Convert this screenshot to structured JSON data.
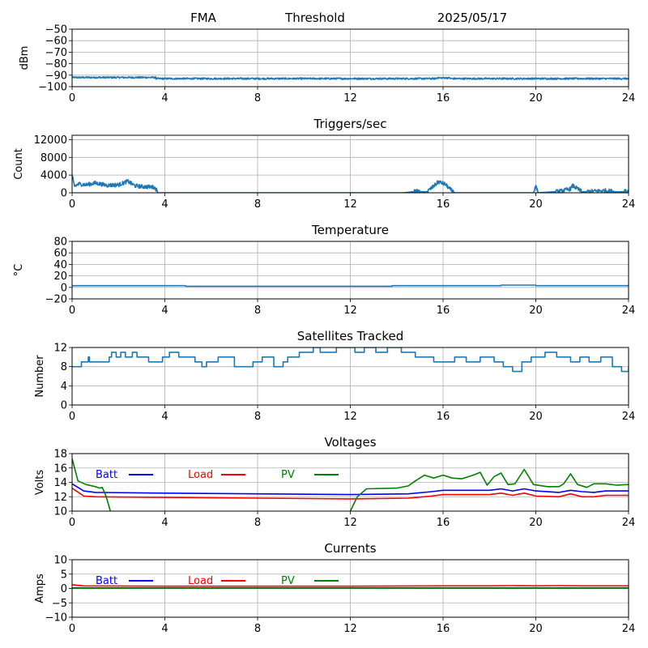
{
  "header": {
    "station": "FMA",
    "mode": "Threshold",
    "date": "2025/05/17"
  },
  "chart_data": [
    {
      "type": "line",
      "title": "",
      "ylabel": "dBm",
      "xlim": [
        0,
        24
      ],
      "ylim": [
        -100,
        -50
      ],
      "xticks": [
        0,
        4,
        8,
        12,
        16,
        20,
        24
      ],
      "yticks": [
        -100,
        -90,
        -80,
        -70,
        -60,
        -50
      ],
      "grid": true,
      "series": [
        {
          "color": "#1f77b4",
          "noise": 0.7,
          "x": [
            0,
            3.6,
            3.6,
            15.7,
            15.7,
            16.3,
            16.3,
            24
          ],
          "y": [
            -92,
            -92,
            -93,
            -93,
            -92.4,
            -92.4,
            -93,
            -93
          ]
        }
      ]
    },
    {
      "type": "line",
      "title": "Triggers/sec",
      "ylabel": "Count",
      "xlim": [
        0,
        24
      ],
      "ylim": [
        0,
        13000
      ],
      "xticks": [
        0,
        4,
        8,
        12,
        16,
        20,
        24
      ],
      "yticks": [
        0,
        4000,
        8000,
        12000
      ],
      "grid": true,
      "series": [
        {
          "color": "#1f77b4",
          "noise": 450,
          "x": [
            0,
            0.1,
            0.3,
            0.6,
            1,
            1.5,
            2,
            2.4,
            2.7,
            3,
            3.5,
            3.6,
            3.7,
            14.3,
            14.8,
            15.3,
            15.6,
            15.8,
            16.1,
            16.3,
            16.5,
            19.9,
            20,
            20.1,
            21,
            21.5,
            21.6,
            22,
            23,
            23.5,
            24
          ],
          "y": [
            3800,
            1500,
            2000,
            1800,
            2200,
            1700,
            1800,
            2600,
            1600,
            1400,
            1300,
            1000,
            0,
            0,
            300,
            200,
            1500,
            2500,
            1900,
            800,
            0,
            0,
            1500,
            0,
            300,
            900,
            1600,
            200,
            500,
            200,
            300
          ]
        }
      ]
    },
    {
      "type": "line",
      "title": "Temperature",
      "ylabel": "°C",
      "xlim": [
        0,
        24
      ],
      "ylim": [
        -20,
        80
      ],
      "xticks": [
        0,
        4,
        8,
        12,
        16,
        20,
        24
      ],
      "yticks": [
        -20,
        0,
        20,
        40,
        60,
        80
      ],
      "grid": true,
      "series": [
        {
          "color": "#1f77b4",
          "noise": 0,
          "x": [
            0,
            4.9,
            4.9,
            13.8,
            13.8,
            18.5,
            18.5,
            20,
            20,
            24
          ],
          "y": [
            3,
            3,
            2,
            2,
            3,
            3,
            4,
            4,
            3,
            3
          ]
        }
      ]
    },
    {
      "type": "line",
      "title": "Satellites Tracked",
      "ylabel": "Number",
      "xlim": [
        0,
        24
      ],
      "ylim": [
        0,
        12
      ],
      "xticks": [
        0,
        4,
        8,
        12,
        16,
        20,
        24
      ],
      "yticks": [
        0,
        4,
        8,
        12
      ],
      "grid": true,
      "series": [
        {
          "color": "#1f77b4",
          "noise": 0,
          "step": true,
          "x": [
            0,
            0.4,
            0.7,
            0.75,
            1.6,
            1.7,
            1.9,
            2.1,
            2.3,
            2.6,
            2.8,
            3.3,
            3.9,
            4.2,
            4.6,
            5.3,
            5.6,
            5.8,
            6.3,
            7,
            7.8,
            8.2,
            8.7,
            9.1,
            9.3,
            9.8,
            10.4,
            10.7,
            11.4,
            12.2,
            12.6,
            13.1,
            13.6,
            14.2,
            14.8,
            15.6,
            16.5,
            17,
            17.6,
            18.2,
            18.6,
            19,
            19.4,
            19.8,
            20.4,
            20.9,
            21.5,
            21.9,
            22.3,
            22.8,
            23.3,
            23.7,
            24
          ],
          "y": [
            8,
            9,
            10,
            9,
            10,
            11,
            10,
            11,
            10,
            11,
            10,
            9,
            10,
            11,
            10,
            9,
            8,
            9,
            10,
            8,
            9,
            10,
            8,
            9,
            10,
            11,
            12,
            11,
            12,
            11,
            12,
            11,
            12,
            11,
            10,
            9,
            10,
            9,
            10,
            9,
            8,
            7,
            9,
            10,
            11,
            10,
            9,
            10,
            9,
            10,
            8,
            7,
            8
          ]
        }
      ]
    },
    {
      "type": "line",
      "title": "Voltages",
      "ylabel": "Volts",
      "xlim": [
        0,
        24
      ],
      "ylim": [
        10,
        18
      ],
      "xticks": [
        0,
        4,
        8,
        12,
        16,
        20,
        24
      ],
      "yticks": [
        10,
        12,
        14,
        16,
        18
      ],
      "grid": true,
      "legend": [
        "Batt",
        "Load",
        "PV"
      ],
      "series": [
        {
          "name": "Batt",
          "color": "#0000ff",
          "noise": 0,
          "x": [
            0,
            0.5,
            1,
            4,
            8,
            12,
            14.5,
            15.5,
            16,
            17,
            18,
            18.5,
            19,
            19.5,
            20,
            21,
            21.5,
            22,
            22.5,
            23,
            24
          ],
          "y": [
            13.8,
            12.8,
            12.6,
            12.5,
            12.4,
            12.3,
            12.4,
            12.7,
            12.9,
            12.9,
            12.9,
            13.1,
            12.8,
            13.1,
            12.8,
            12.6,
            12.9,
            12.7,
            12.6,
            12.8,
            12.8
          ]
        },
        {
          "name": "Load",
          "color": "#ff0000",
          "noise": 0,
          "x": [
            0,
            0.5,
            1,
            4,
            8,
            12,
            14.5,
            15.5,
            16,
            17,
            18,
            18.5,
            19,
            19.5,
            20,
            21,
            21.5,
            22,
            22.5,
            23,
            24
          ],
          "y": [
            13.2,
            12.1,
            12,
            11.9,
            11.8,
            11.7,
            11.8,
            12.1,
            12.3,
            12.3,
            12.3,
            12.5,
            12.2,
            12.5,
            12.1,
            12,
            12.4,
            12,
            12,
            12.2,
            12.2
          ]
        },
        {
          "name": "PV",
          "color": "#008000",
          "noise": 0,
          "x": [
            0,
            0.25,
            0.6,
            1,
            1.2,
            1.3,
            1.45,
            1.6,
            1.65
          ],
          "y": [
            17.3,
            14.2,
            13.7,
            13.4,
            13.2,
            13.3,
            12.2,
            10.6,
            10
          ],
          "x2": [
            12,
            12.3,
            12.7,
            14,
            14.5,
            14.8,
            15.2,
            15.6,
            16,
            16.4,
            16.8,
            17.3,
            17.6,
            17.9,
            18.2,
            18.5,
            18.8,
            19.1,
            19.5,
            19.9,
            20.5,
            21,
            21.2,
            21.5,
            21.8,
            22.2,
            22.5,
            23,
            23.5,
            24
          ],
          "y2": [
            10,
            12,
            13.1,
            13.2,
            13.5,
            14.2,
            15,
            14.6,
            15,
            14.6,
            14.5,
            15,
            15.4,
            13.6,
            14.8,
            15.3,
            13.7,
            13.8,
            15.8,
            13.7,
            13.4,
            13.4,
            13.8,
            15.2,
            13.7,
            13.3,
            13.8,
            13.8,
            13.6,
            13.7
          ]
        }
      ]
    },
    {
      "type": "line",
      "title": "Currents",
      "ylabel": "Amps",
      "xlim": [
        0,
        24
      ],
      "ylim": [
        -10,
        10
      ],
      "xticks": [
        0,
        4,
        8,
        12,
        16,
        20,
        24
      ],
      "yticks": [
        -10,
        -5,
        0,
        5,
        10
      ],
      "grid": true,
      "legend": [
        "Batt",
        "Load",
        "PV"
      ],
      "series": [
        {
          "name": "Batt",
          "color": "#0000ff",
          "noise": 0,
          "x": [
            0,
            24
          ],
          "y": [
            0.2,
            0.2
          ]
        },
        {
          "name": "PV",
          "color": "#008000",
          "noise": 0,
          "x": [
            0,
            24
          ],
          "y": [
            0.1,
            0.1
          ]
        },
        {
          "name": "Load",
          "color": "#ff0000",
          "noise": 0,
          "x": [
            0,
            0.5,
            4,
            12,
            16,
            18,
            19,
            20,
            21,
            22,
            24
          ],
          "y": [
            1.3,
            0.9,
            0.8,
            0.8,
            0.9,
            0.9,
            1.0,
            0.9,
            1.0,
            0.9,
            0.9
          ]
        }
      ]
    }
  ]
}
